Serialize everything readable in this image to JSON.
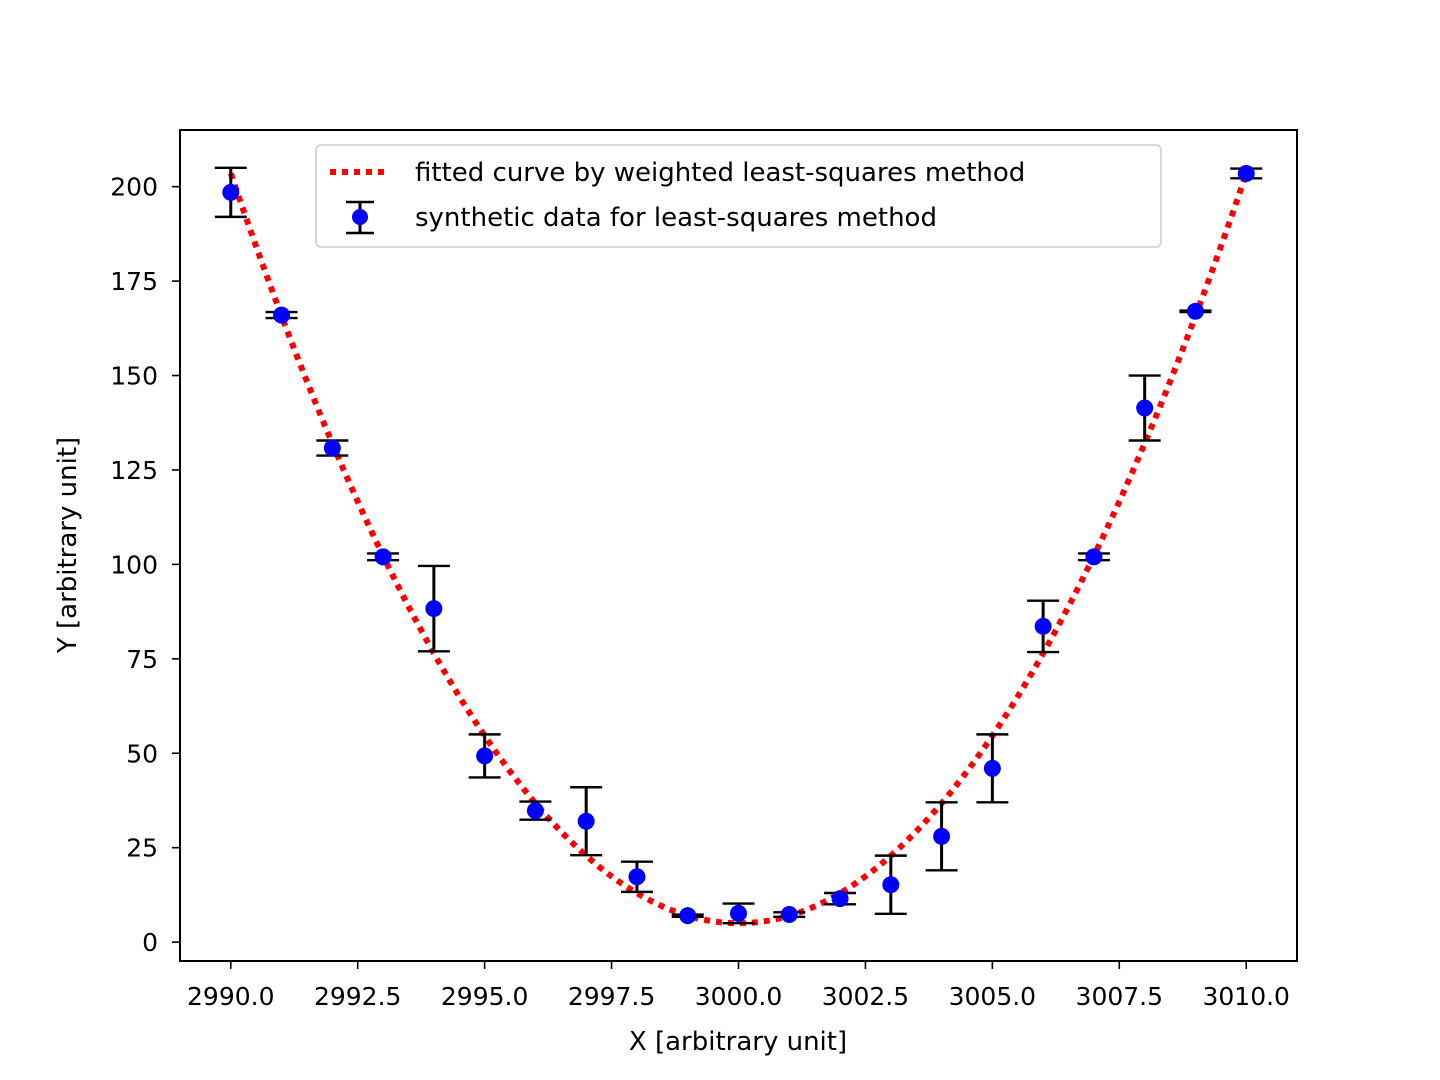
{
  "chart_data": {
    "type": "scatter",
    "title": "",
    "xlabel": "X [arbitrary unit]",
    "ylabel": "Y [arbitrary unit]",
    "xlim": [
      2989.0,
      3011.0
    ],
    "ylim": [
      -5,
      215
    ],
    "xticks": [
      2990.0,
      2992.5,
      2995.0,
      2997.5,
      3000.0,
      3002.5,
      3005.0,
      3007.5,
      3010.0
    ],
    "xtick_labels": [
      "2990.0",
      "2992.5",
      "2995.0",
      "2997.5",
      "3000.0",
      "3002.5",
      "3005.0",
      "3007.5",
      "3010.0"
    ],
    "yticks": [
      0,
      25,
      50,
      75,
      100,
      125,
      150,
      175,
      200
    ],
    "ytick_labels": [
      "0",
      "25",
      "50",
      "75",
      "100",
      "125",
      "150",
      "175",
      "200"
    ],
    "grid": false,
    "legend_position": "upper-center",
    "series": [
      {
        "name": "fitted curve by weighted least-squares method",
        "kind": "line",
        "style": "dotted",
        "color": "#ff0000",
        "model": "quadratic",
        "coefficients": {
          "a": 1.985,
          "vertex_x": 3000.0,
          "vertex_y": 5.0
        },
        "x_range": [
          2990.0,
          3010.0
        ]
      },
      {
        "name": "synthetic data for least-squares method",
        "kind": "errorbar",
        "marker_color": "#0000ff",
        "errorbar_color": "#000000",
        "x": [
          2990,
          2991,
          2992,
          2993,
          2994,
          2995,
          2996,
          2997,
          2998,
          2999,
          3000,
          3001,
          3002,
          3003,
          3004,
          3005,
          3006,
          3007,
          3008,
          3009,
          3010
        ],
        "y": [
          198.5,
          166.0,
          130.8,
          102.0,
          88.3,
          49.3,
          34.8,
          32.0,
          17.3,
          7.0,
          7.6,
          7.3,
          11.5,
          15.2,
          28.0,
          46.0,
          83.6,
          102.0,
          141.4,
          167.0,
          203.5
        ],
        "yerr": [
          6.5,
          0.8,
          2.0,
          0.9,
          11.3,
          5.7,
          2.4,
          9.0,
          4.0,
          0.3,
          2.6,
          0.6,
          1.5,
          7.7,
          9.0,
          9.0,
          6.8,
          0.9,
          8.6,
          0.2,
          1.3
        ]
      }
    ]
  }
}
